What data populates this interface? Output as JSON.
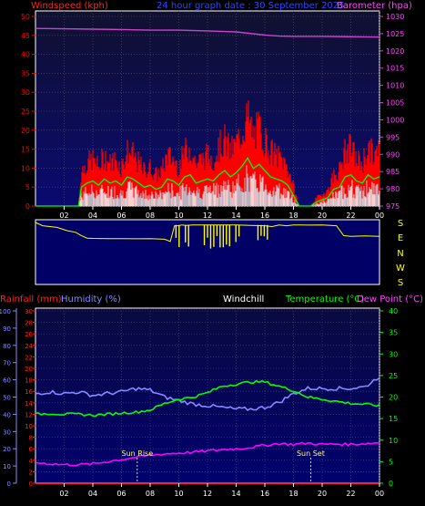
{
  "header": {
    "left_label": "Windspeed (kph)",
    "center_label": "24 hour graph date : 30 September 2025",
    "right_label": "Barometer (hpa)"
  },
  "x_ticks": [
    "02",
    "04",
    "06",
    "08",
    "10",
    "12",
    "14",
    "16",
    "18",
    "20",
    "22",
    "00"
  ],
  "direction_labels": [
    "S",
    "E",
    "N",
    "W",
    "S"
  ],
  "lower_header": {
    "rain": "Rainfall (mm)",
    "humidity": "Humidity (%)",
    "windchill": "Windchill",
    "temperature": "Temperature (°C)",
    "dewpoint": "Dew Point (°C)"
  },
  "annotations": {
    "sunrise": "Sun Rise",
    "sunset": "Sun Set"
  },
  "colors": {
    "bg": "#000000",
    "plot_bg_top": "#10103a",
    "plot_bg_bottom": "#000077",
    "wind": "#ff0000",
    "wind_dark": "#cc0000",
    "wind_avg": "#00ff00",
    "wind_white": "#ffffff",
    "wind_cyan": "#00ffff",
    "baro": "#cc44cc",
    "direction": "#ffff00",
    "humidity": "#8888ff",
    "temperature": "#00ff00",
    "dewpoint": "#ff00ff",
    "rain": "#ff2222",
    "axis": "#ffffff"
  },
  "chart_data": [
    {
      "type": "line",
      "name": "wind",
      "y_left": {
        "label": "Windspeed (kph)",
        "range": [
          0,
          50
        ],
        "ticks": [
          0,
          5,
          10,
          15,
          20,
          25,
          30,
          35,
          40,
          45,
          50
        ]
      },
      "y_right": {
        "label": "Barometer (hpa)",
        "range": [
          975,
          1030
        ],
        "ticks": [
          975,
          980,
          985,
          990,
          995,
          1000,
          1005,
          1010,
          1015,
          1020,
          1025,
          1030
        ]
      },
      "x_range_hours": [
        0,
        24
      ],
      "grid": true,
      "series": [
        {
          "name": "Windspeed (kph)",
          "x": [
            0,
            3,
            3.2,
            3.6,
            4,
            4.4,
            4.8,
            5.2,
            5.6,
            6,
            6.4,
            6.8,
            7.2,
            7.6,
            8,
            8.4,
            8.8,
            9.2,
            9.6,
            10,
            10.4,
            10.8,
            11.2,
            11.6,
            12,
            12.4,
            12.8,
            13.2,
            13.6,
            14,
            14.4,
            14.8,
            15.2,
            15.6,
            16,
            16.4,
            16.8,
            17.2,
            17.6,
            18,
            18.4,
            18.8,
            19.2,
            19.6,
            20,
            20.4,
            20.8,
            21.2,
            21.6,
            22,
            22.4,
            22.8,
            23.2,
            23.6,
            24
          ],
          "values": [
            0,
            0,
            9,
            11,
            12,
            10,
            13,
            11,
            12,
            10,
            14,
            13,
            11,
            9,
            10,
            8,
            9,
            13,
            12,
            10,
            14,
            15,
            11,
            12,
            13,
            12,
            15,
            17,
            14,
            16,
            19,
            23,
            18,
            20,
            17,
            14,
            13,
            12,
            10,
            5,
            0,
            0,
            0,
            2,
            3,
            4,
            8,
            9,
            14,
            15,
            12,
            11,
            15,
            13,
            14
          ]
        },
        {
          "name": "Barometer (hpa)",
          "x": [
            0,
            2,
            4,
            6,
            8,
            10,
            12,
            14,
            16,
            17,
            18,
            20,
            22,
            24
          ],
          "values": [
            1026.5,
            1026.4,
            1026.3,
            1026.2,
            1026.0,
            1026.0,
            1025.8,
            1025.5,
            1024.6,
            1024.3,
            1024.2,
            1024.2,
            1024.1,
            1024.0
          ]
        }
      ]
    },
    {
      "type": "line",
      "name": "wind_direction",
      "y_labels": [
        "S",
        "E",
        "N",
        "W",
        "S"
      ],
      "x_range_hours": [
        0,
        24
      ],
      "series": [
        {
          "name": "Wind Direction (deg)",
          "x": [
            0,
            0.5,
            1.5,
            2.2,
            2.8,
            3.2,
            3.6,
            4,
            5,
            6,
            7,
            8,
            9,
            9.4,
            9.7,
            10,
            10.2,
            10.5,
            11,
            12,
            13,
            14,
            15,
            16,
            16.5,
            17,
            17.5,
            18,
            18.5,
            19,
            20,
            21,
            21.5,
            22,
            23,
            24
          ],
          "values": [
            360,
            340,
            330,
            310,
            300,
            280,
            265,
            263,
            262,
            262,
            261,
            262,
            258,
            245,
            340,
            340,
            345,
            342,
            345,
            345,
            345,
            345,
            342,
            340,
            335,
            345,
            340,
            345,
            345,
            344,
            345,
            340,
            280,
            276,
            278,
            276
          ]
        }
      ]
    },
    {
      "type": "line",
      "name": "temperature_humidity",
      "y_axes": {
        "humidity": {
          "label": "Humidity (%)",
          "range": [
            0,
            100
          ],
          "ticks": [
            0,
            10,
            20,
            30,
            40,
            50,
            60,
            70,
            80,
            90,
            100
          ]
        },
        "rainfall": {
          "label": "Rainfall (mm)",
          "range": [
            0,
            30
          ],
          "ticks": [
            0,
            2,
            4,
            6,
            8,
            10,
            12,
            14,
            16,
            18,
            20,
            22,
            24,
            26,
            28,
            30
          ]
        },
        "temperature": {
          "label": "Temperature (°C)",
          "range": [
            0,
            40
          ],
          "ticks": [
            0,
            5,
            10,
            15,
            20,
            25,
            30,
            35,
            40
          ]
        }
      },
      "x_range_hours": [
        0,
        24
      ],
      "series": [
        {
          "name": "Humidity (%)",
          "axis": "humidity",
          "x": [
            0,
            1,
            2,
            3,
            4,
            5,
            6,
            7,
            8,
            9,
            10,
            11,
            12,
            13,
            14,
            15,
            16,
            17,
            18,
            19,
            20,
            21,
            22,
            23,
            24
          ],
          "values": [
            52,
            53,
            52,
            53,
            51,
            52,
            53,
            55,
            54,
            50,
            48,
            46,
            45,
            44,
            43,
            43,
            44,
            47,
            52,
            55,
            55,
            55,
            55,
            56,
            62
          ]
        },
        {
          "name": "Temperature (°C)",
          "axis": "temperature",
          "x": [
            0,
            1,
            2,
            3,
            4,
            5,
            6,
            7,
            8,
            9,
            10,
            11,
            12,
            13,
            14,
            15,
            16,
            17,
            18,
            19,
            20,
            21,
            22,
            23,
            24
          ],
          "values": [
            16,
            16.2,
            16,
            16,
            15.8,
            16,
            16.3,
            16.5,
            17,
            18.5,
            19.5,
            20,
            21,
            22.5,
            23,
            23.5,
            23.5,
            22.5,
            21.5,
            20,
            19.5,
            19,
            18.5,
            18.3,
            18
          ]
        },
        {
          "name": "Dew Point (°C)",
          "axis": "temperature",
          "x": [
            0,
            1,
            2,
            3,
            4,
            5,
            6,
            7,
            8,
            9,
            10,
            11,
            12,
            13,
            14,
            15,
            16,
            17,
            18,
            19,
            20,
            21,
            22,
            23,
            24
          ],
          "values": [
            4.8,
            4.5,
            4.3,
            4.3,
            4.5,
            5,
            5.5,
            6,
            6.5,
            6.8,
            7,
            7.2,
            7.5,
            7.8,
            8,
            8.3,
            8.8,
            9.2,
            9,
            9.3,
            9,
            9.1,
            9,
            9.2,
            9.4
          ]
        },
        {
          "name": "Rainfall (mm)",
          "axis": "rainfall",
          "x": [
            0,
            24
          ],
          "values": [
            0,
            0
          ]
        }
      ],
      "markers": [
        {
          "label": "Sun Rise",
          "x": 7.1
        },
        {
          "label": "Sun Set",
          "x": 19.2
        }
      ]
    }
  ]
}
